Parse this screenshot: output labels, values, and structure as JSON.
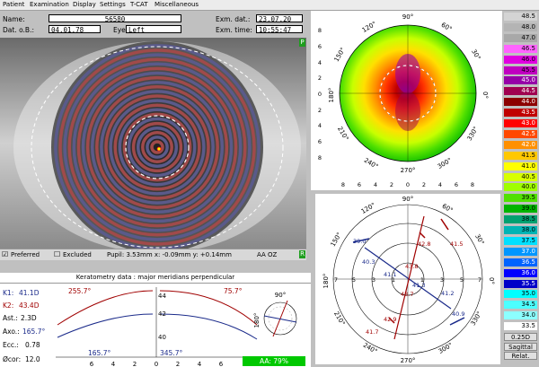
{
  "menu": [
    "Patient",
    "Examination",
    "Display",
    "Settings",
    "T-CAT",
    "Miscellaneous"
  ],
  "header": {
    "name_label": "Name:",
    "name_value": "56580",
    "dob_label": "Dat. o.B.:",
    "dob_value": "04.01.78",
    "eye_label": "Eye:",
    "eye_value": "Left",
    "exm_date_label": "Exm. dat.:",
    "exm_date_value": "23.07.20",
    "exm_time_label": "Exm. time:",
    "exm_time_value": "10:55:47"
  },
  "eye_image": {
    "tag_top": "P",
    "tag_bottom": "R",
    "preferred_label": "Preferred",
    "preferred_checked": true,
    "excluded_label": "Excluded",
    "excluded_checked": false,
    "pupil_text": "Pupil: 3.53mm x: -0.09mm y: +0.14mm",
    "aaoz_label": "AA OZ"
  },
  "axial_map": {
    "angles": [
      "90°",
      "120°",
      "60°",
      "150°",
      "30°",
      "180°",
      "0°",
      "210°",
      "330°",
      "240°",
      "300°",
      "270°"
    ],
    "left_ticks": [
      "8",
      "6",
      "4",
      "2",
      "0",
      "2",
      "4",
      "6",
      "8"
    ],
    "x_ticks": [
      "8",
      "6",
      "4",
      "2",
      "0",
      "2",
      "4",
      "6",
      "8"
    ]
  },
  "color_scale": {
    "values": [
      "48.5",
      "48.0",
      "47.0",
      "46.5",
      "46.0",
      "45.5",
      "45.0",
      "44.5",
      "44.0",
      "43.5",
      "43.0",
      "42.5",
      "42.0",
      "41.5",
      "41.0",
      "40.5",
      "40.0",
      "39.5",
      "39.0",
      "38.5",
      "38.0",
      "37.5",
      "37.0",
      "36.5",
      "36.0",
      "35.5",
      "35.0",
      "34.5",
      "34.0",
      "33.5"
    ],
    "colors": [
      "#d4d4d4",
      "#b4b4b4",
      "#a8a8a8",
      "#ff64ff",
      "#e000e0",
      "#c000c0",
      "#9600a8",
      "#a00050",
      "#8c0000",
      "#c00000",
      "#ff0000",
      "#ff4800",
      "#ff9000",
      "#ffc800",
      "#ffff00",
      "#d8ff00",
      "#a0ff00",
      "#50e000",
      "#00b400",
      "#00a070",
      "#00b4b4",
      "#00e0ff",
      "#0096ff",
      "#0064ff",
      "#0000ff",
      "#0000c8",
      "#00ffff",
      "#4cffff",
      "#8cffff",
      "#ffffff"
    ],
    "step": "0.25D",
    "mode1": "Sagittal",
    "mode2": "Relat."
  },
  "meridian_map": {
    "angles": [
      "90°",
      "120°",
      "60°",
      "150°",
      "30°",
      "180°",
      "0°",
      "210°",
      "330°",
      "240°",
      "300°",
      "270°"
    ],
    "ring_labels": [
      "7",
      "5",
      "3",
      "1",
      "1",
      "3",
      "5",
      "7"
    ],
    "values": [
      {
        "v": "39.0",
        "c": "blue"
      },
      {
        "v": "42.8",
        "c": "red"
      },
      {
        "v": "41.5",
        "c": "red"
      },
      {
        "v": "40.3",
        "c": "blue"
      },
      {
        "v": "43.8",
        "c": "red"
      },
      {
        "v": "41.1",
        "c": "blue"
      },
      {
        "v": "41.3",
        "c": "blue"
      },
      {
        "v": "41.2",
        "c": "blue"
      },
      {
        "v": "43.7",
        "c": "red"
      },
      {
        "v": "40.9",
        "c": "blue"
      },
      {
        "v": "42.9",
        "c": "red"
      },
      {
        "v": "41.7",
        "c": "red"
      }
    ]
  },
  "keratometry": {
    "title": "Keratometry data : major meridians perpendicular",
    "k1_label": "K1:",
    "k1_value": "41.1D",
    "k2_label": "K2:",
    "k2_value": "43.4D",
    "ast_label": "Ast.:",
    "ast_value": "2.3D",
    "axo_label": "Axo.:",
    "axo_value": "165.7°",
    "ecc_label": "Ecc.:",
    "ecc_value": "0.78",
    "cor_label": "Øcor:",
    "cor_value": "12.0",
    "steep_left": "255.7°",
    "steep_right": "75.7°",
    "flat_left": "165.7°",
    "flat_right": "345.7°",
    "y_ticks": [
      "44",
      "42",
      "40"
    ],
    "x_ticks": [
      "6",
      "4",
      "2",
      "0",
      "2",
      "4",
      "6"
    ],
    "aa_text": "AA: 79%",
    "mini_top": "90°",
    "mini_left": "180°"
  }
}
